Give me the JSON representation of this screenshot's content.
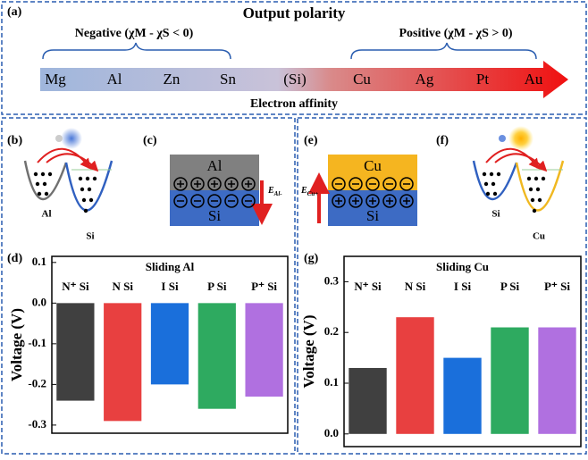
{
  "panel_a": {
    "label": "(a)",
    "title": "Output polarity",
    "negative": "Negative (χM - χS < 0)",
    "positive": "Positive (χM - χS > 0)",
    "materials": [
      "Mg",
      "Al",
      "Zn",
      "Sn",
      "(Si)",
      "Cu",
      "Ag",
      "Pt",
      "Au"
    ],
    "axis_label": "Electron affinity"
  },
  "panel_b": {
    "label": "(b)",
    "left": "Al",
    "right": "Si"
  },
  "panel_c": {
    "label": "(c)",
    "top": "Al",
    "bottom": "Si",
    "field": "E",
    "field_sub": "Al-"
  },
  "panel_e": {
    "label": "(e)",
    "top": "Cu",
    "bottom": "Si",
    "field": "E",
    "field_sub": "Cu+"
  },
  "panel_f": {
    "label": "(f)",
    "left": "Si",
    "right": "Cu"
  },
  "chart_data": [
    {
      "type": "bar",
      "label": "(d)",
      "title": "Sliding Al",
      "ylabel": "Voltage (V)",
      "categories": [
        "N⁺ Si",
        "N Si",
        "I Si",
        "P Si",
        "P⁺ Si"
      ],
      "values": [
        -0.24,
        -0.29,
        -0.2,
        -0.26,
        -0.23
      ],
      "colors": [
        "#404040",
        "#e84040",
        "#1a6fdb",
        "#2eaa60",
        "#b070e0"
      ],
      "ylim": [
        -0.32,
        0.115
      ],
      "yticks": [
        -0.3,
        -0.2,
        -0.1,
        {
          "value": 0,
          "label": "0.0"
        },
        0.1
      ]
    },
    {
      "type": "bar",
      "label": "(g)",
      "title": "Sliding Cu",
      "ylabel": "Voltage (V)",
      "categories": [
        "N⁺ Si",
        "N Si",
        "I Si",
        "P Si",
        "P⁺ Si"
      ],
      "values": [
        0.13,
        0.23,
        0.15,
        0.21,
        0.21
      ],
      "colors": [
        "#404040",
        "#e84040",
        "#1a6fdb",
        "#2eaa60",
        "#b070e0"
      ],
      "ylim": [
        -0.025,
        0.35
      ],
      "yticks": [
        {
          "value": 0,
          "label": "0.0"
        },
        0.1,
        0.2,
        0.3
      ]
    }
  ]
}
